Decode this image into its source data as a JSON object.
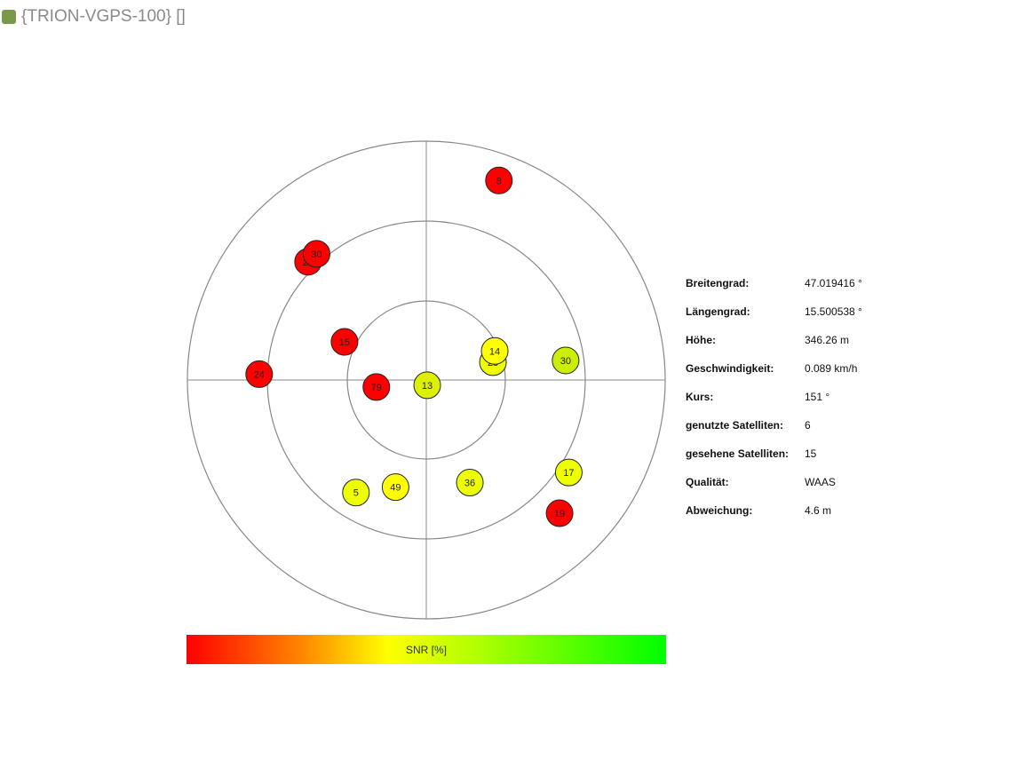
{
  "header": {
    "title": "{TRION-VGPS-100} []",
    "status_color": "#7a9a4a"
  },
  "skyplot": {
    "satellites": [
      {
        "id": "8",
        "azimuth": 20,
        "elevation": 10,
        "snr_color": "#ff0000"
      },
      {
        "id": "20",
        "azimuth": -45,
        "elevation": 27,
        "snr_color": "#ff0000"
      },
      {
        "id": "30",
        "azimuth": -41,
        "elevation": 27,
        "snr_color": "#ff0000"
      },
      {
        "id": "15",
        "azimuth": -65,
        "elevation": 56,
        "snr_color": "#ff0000"
      },
      {
        "id": "24",
        "azimuth": -88,
        "elevation": 27,
        "snr_color": "#ff0000"
      },
      {
        "id": "79",
        "azimuth": -98,
        "elevation": 71,
        "snr_color": "#ff0000"
      },
      {
        "id": "13",
        "azimuth": 170,
        "elevation": 88,
        "snr_color": "#ddf000"
      },
      {
        "id": "28",
        "azimuth": 75,
        "elevation": 64,
        "snr_color": "#eeff00"
      },
      {
        "id": "14",
        "azimuth": 67,
        "elevation": 62,
        "snr_color": "#ffff00"
      },
      {
        "id": "30",
        "azimuth": 82,
        "elevation": 37,
        "snr_color": "#ccee00"
      },
      {
        "id": "17",
        "azimuth": 123,
        "elevation": 26,
        "snr_color": "#eeff00"
      },
      {
        "id": "36",
        "azimuth": 157,
        "elevation": 48,
        "snr_color": "#eeff00"
      },
      {
        "id": "19",
        "azimuth": 135,
        "elevation": 19,
        "snr_color": "#ff0000"
      },
      {
        "id": "49",
        "azimuth": -164,
        "elevation": 48,
        "snr_color": "#ffff00"
      },
      {
        "id": "5",
        "azimuth": -148,
        "elevation": 40,
        "snr_color": "#eeff00"
      }
    ]
  },
  "snr_bar": {
    "label": "SNR [%]"
  },
  "info": [
    {
      "key": "Breitengrad:",
      "value": "47.019416 °"
    },
    {
      "key": "Längengrad:",
      "value": "15.500538 °"
    },
    {
      "key": "Höhe:",
      "value": "346.26 m"
    },
    {
      "key": "Geschwindigkeit:",
      "value": "0.089 km/h"
    },
    {
      "key": "Kurs:",
      "value": "151 °"
    },
    {
      "key": "genutzte Satelliten:",
      "value": "6"
    },
    {
      "key": "gesehene Satelliten:",
      "value": "15"
    },
    {
      "key": "Qualität:",
      "value": "WAAS"
    },
    {
      "key": "Abweichung:",
      "value": "4.6 m"
    }
  ]
}
